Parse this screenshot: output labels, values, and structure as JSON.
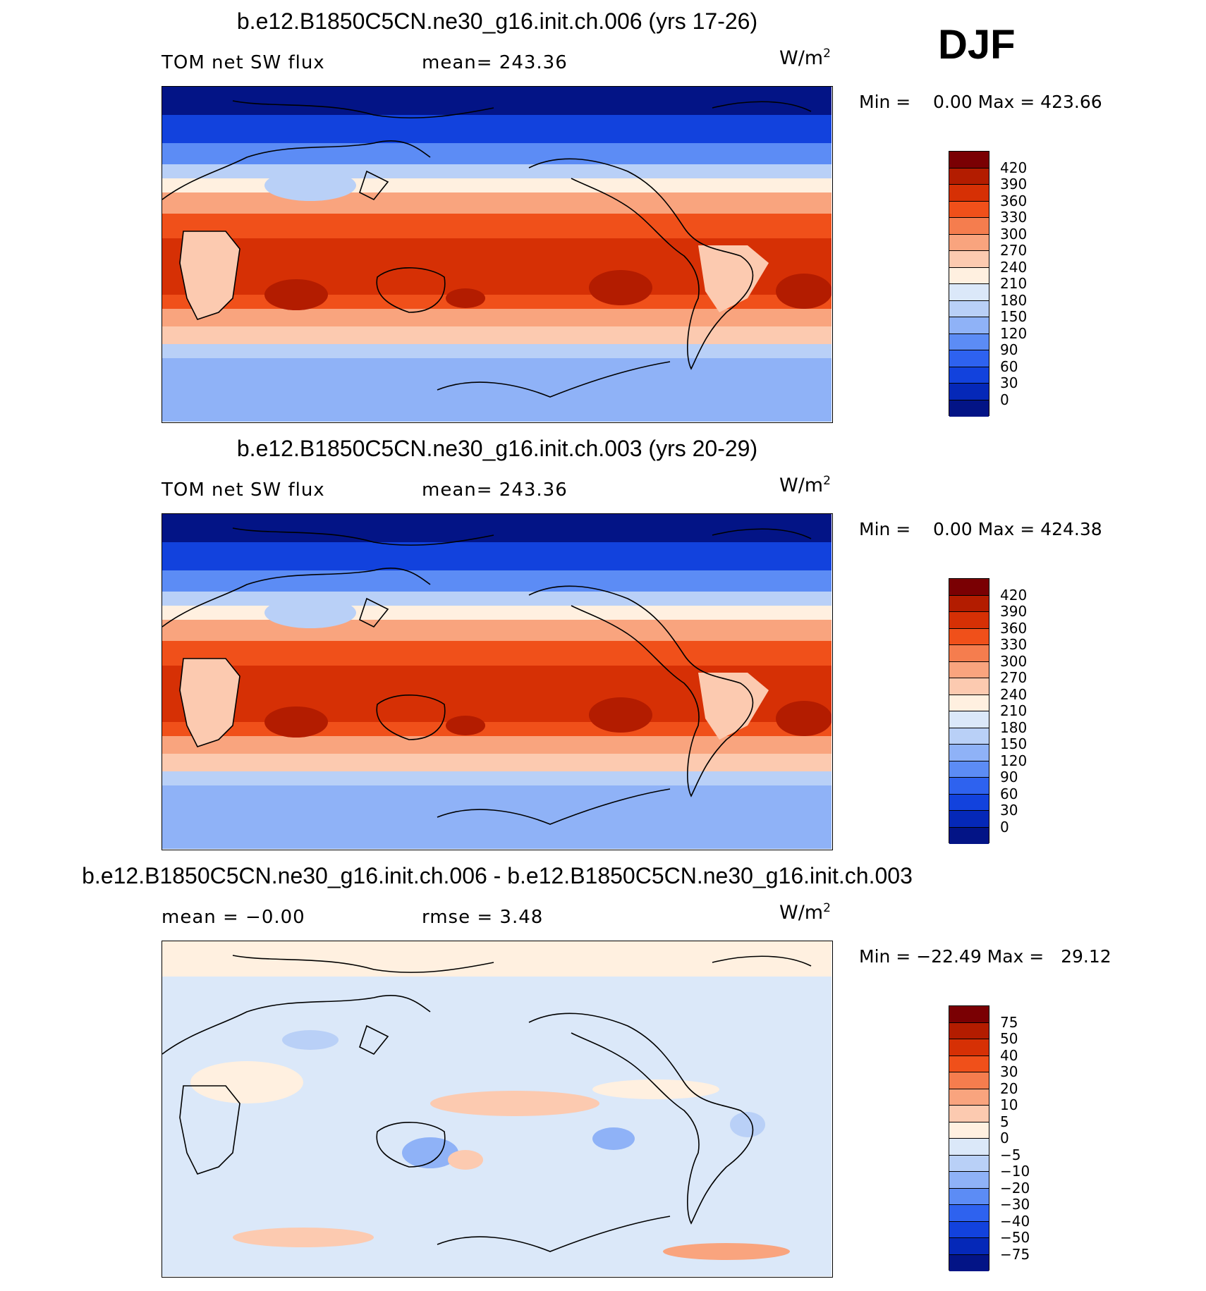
{
  "season": "DJF",
  "panels": [
    {
      "title": "b.e12.B1850C5CN.ne30_g16.init.ch.006 (yrs 17-26)",
      "left_label": "TOM net SW flux",
      "mid_label": "mean= 243.36",
      "units": "W/m",
      "units_exp": "2",
      "minmax": "Min =    0.00 Max = 423.66",
      "colorbar": {
        "labels": [
          "420",
          "390",
          "360",
          "330",
          "300",
          "270",
          "240",
          "210",
          "180",
          "150",
          "120",
          "90",
          "60",
          "30",
          "0"
        ],
        "colors": [
          "#7a0003",
          "#b31c00",
          "#d63005",
          "#f0501a",
          "#f57d4e",
          "#f9a47e",
          "#fccab0",
          "#fff0e0",
          "#dbe8f9",
          "#b9d0f7",
          "#8fb2f7",
          "#5c8cf5",
          "#2e62ef",
          "#1242dd",
          "#0528b8",
          "#031486"
        ]
      }
    },
    {
      "title": "b.e12.B1850C5CN.ne30_g16.init.ch.003 (yrs 20-29)",
      "left_label": "TOM net SW flux",
      "mid_label": "mean= 243.36",
      "units": "W/m",
      "units_exp": "2",
      "minmax": "Min =    0.00 Max = 424.38",
      "colorbar": {
        "labels": [
          "420",
          "390",
          "360",
          "330",
          "300",
          "270",
          "240",
          "210",
          "180",
          "150",
          "120",
          "90",
          "60",
          "30",
          "0"
        ],
        "colors": [
          "#7a0003",
          "#b31c00",
          "#d63005",
          "#f0501a",
          "#f57d4e",
          "#f9a47e",
          "#fccab0",
          "#fff0e0",
          "#dbe8f9",
          "#b9d0f7",
          "#8fb2f7",
          "#5c8cf5",
          "#2e62ef",
          "#1242dd",
          "#0528b8",
          "#031486"
        ]
      }
    },
    {
      "title": "b.e12.B1850C5CN.ne30_g16.init.ch.006 - b.e12.B1850C5CN.ne30_g16.init.ch.003",
      "left_label": "mean =   −0.00",
      "mid_label": "rmse =    3.48",
      "units": "W/m",
      "units_exp": "2",
      "minmax": "Min = −22.49 Max =   29.12",
      "colorbar": {
        "labels": [
          "75",
          "50",
          "40",
          "30",
          "20",
          "10",
          "5",
          "0",
          "−5",
          "−10",
          "−20",
          "−30",
          "−40",
          "−50",
          "−75"
        ],
        "colors": [
          "#7a0003",
          "#b31c00",
          "#d63005",
          "#f0501a",
          "#f57d4e",
          "#f9a47e",
          "#fccab0",
          "#fff0e0",
          "#dbe8f9",
          "#b9d0f7",
          "#8fb2f7",
          "#5c8cf5",
          "#2e62ef",
          "#1242dd",
          "#0528b8",
          "#031486"
        ]
      }
    }
  ]
}
